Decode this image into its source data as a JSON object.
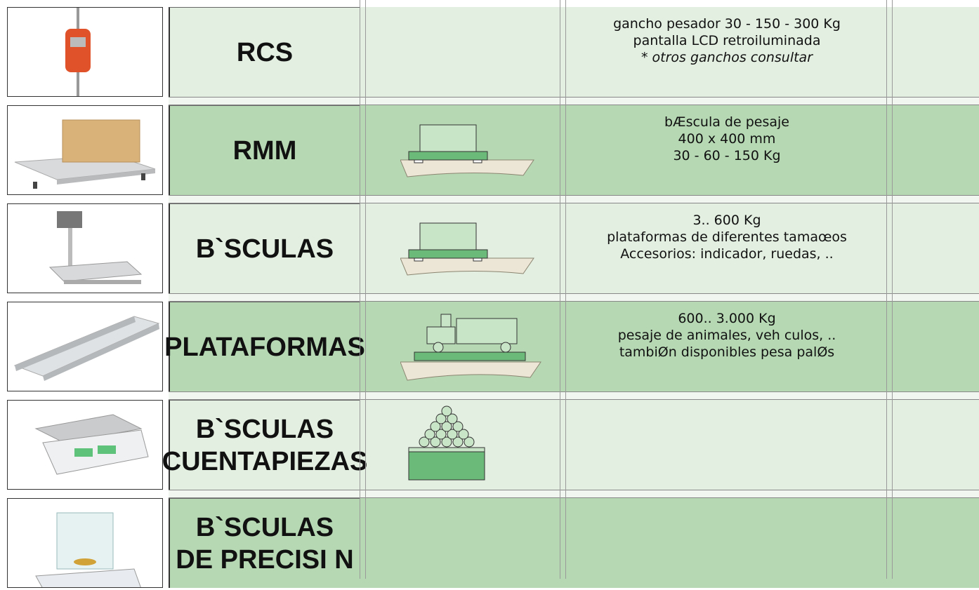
{
  "rows": [
    {
      "name": [
        "RCS"
      ],
      "description": [
        "gancho pesador 30 - 150 - 300 Kg",
        "pantalla LCD retroiluminada",
        "* otros ganchos consultar"
      ]
    },
    {
      "name": [
        "RMM"
      ],
      "description": [
        "bÆscula de pesaje",
        "400 x 400 mm",
        "30 - 60 - 150 Kg"
      ]
    },
    {
      "name": [
        "B`SCULAS"
      ],
      "description": [
        "3.. 600 Kg",
        "plataformas de diferentes tamaœos",
        "Accesorios: indicador, ruedas, .."
      ]
    },
    {
      "name": [
        "PLATAFORMAS"
      ],
      "description": [
        "600.. 3.000 Kg",
        "pesaje de animales, veh culos, ..",
        "tambiØn disponibles pesa palØs"
      ]
    },
    {
      "name": [
        "B`SCULAS",
        "CUENTAPIEZAS"
      ],
      "description": []
    },
    {
      "name": [
        "B`SCULAS",
        "DE PRECISI N"
      ],
      "description": []
    }
  ]
}
